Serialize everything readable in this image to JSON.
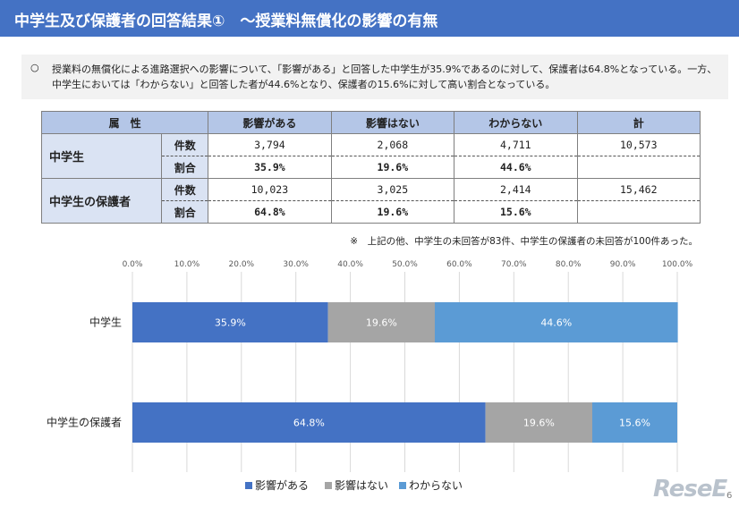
{
  "header": {
    "title": "中学生及び保護者の回答結果①　～授業料無償化の影響の有無"
  },
  "summary": {
    "bullet": "○",
    "text": "授業料の無償化による進路選択への影響について、「影響がある」と回答した中学生が35.9%であるのに対して、保護者は64.8%となっている。一方、中学生においては「わからない」と回答した者が44.6%となり、保護者の15.6%に対して高い割合となっている。"
  },
  "table": {
    "headers": [
      "属　性",
      "影響がある",
      "影響はない",
      "わからない",
      "計"
    ],
    "groups": [
      {
        "label": "中学生",
        "count_label": "件数",
        "ratio_label": "割合",
        "counts": [
          "3,794",
          "2,068",
          "4,711"
        ],
        "ratios": [
          "35.9%",
          "19.6%",
          "44.6%"
        ],
        "total": "10,573"
      },
      {
        "label": "中学生の保護者",
        "count_label": "件数",
        "ratio_label": "割合",
        "counts": [
          "10,023",
          "3,025",
          "2,414"
        ],
        "ratios": [
          "64.8%",
          "19.6%",
          "15.6%"
        ],
        "total": "15,462"
      }
    ],
    "note": "※　上記の他、中学生の未回答が83件、中学生の保護者の未回答が100件あった。"
  },
  "chart_data": {
    "type": "bar",
    "orientation": "horizontal",
    "stacked": true,
    "categories": [
      "中学生",
      "中学生の保護者"
    ],
    "series": [
      {
        "name": "影響がある",
        "values": [
          35.9,
          64.8
        ],
        "color": "#4472c4"
      },
      {
        "name": "影響はない",
        "values": [
          19.6,
          19.6
        ],
        "color": "#a5a5a5"
      },
      {
        "name": "わからない",
        "values": [
          44.6,
          15.6
        ],
        "color": "#5b9bd5"
      }
    ],
    "data_labels": [
      [
        "35.9%",
        "64.8%"
      ],
      [
        "19.6%",
        "19.6%"
      ],
      [
        "44.6%",
        "15.6%"
      ]
    ],
    "ticks": [
      "0.0%",
      "10.0%",
      "20.0%",
      "30.0%",
      "40.0%",
      "50.0%",
      "60.0%",
      "70.0%",
      "80.0%",
      "90.0%",
      "100.0%"
    ],
    "xlim": [
      0,
      100
    ],
    "grid": true,
    "legend_position": "bottom",
    "title": "",
    "xlabel": "",
    "ylabel": ""
  },
  "footer": {
    "logo": "ReseE",
    "page": "6"
  }
}
